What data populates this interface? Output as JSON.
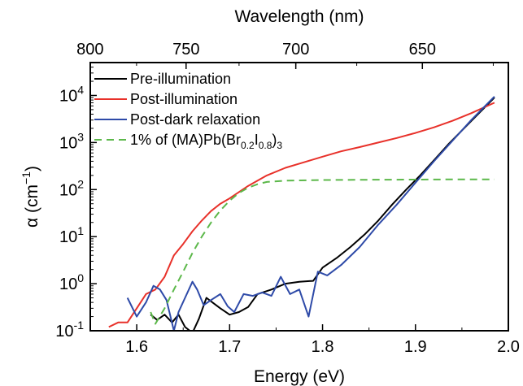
{
  "chart_data": {
    "type": "line",
    "xlabel": "Energy (eV)",
    "ylabel": "α (cm⁻¹)",
    "ylabel_parts": {
      "symbol": "α",
      "open": " (cm",
      "exp": "−1",
      "close": ")"
    },
    "top_xlabel": "Wavelength (nm)",
    "xlim": [
      1.55,
      2.0
    ],
    "ylim": [
      0.1,
      50000
    ],
    "y_scale": "log",
    "x_ticks": [
      "1.6",
      "1.7",
      "1.8",
      "1.9",
      "2.0"
    ],
    "x_tick_values": [
      1.6,
      1.7,
      1.8,
      1.9,
      2.0
    ],
    "y_ticks": [
      {
        "value": 0.1,
        "base": "10",
        "exp": "-1"
      },
      {
        "value": 1,
        "base": "10",
        "exp": "0"
      },
      {
        "value": 10,
        "base": "10",
        "exp": "1"
      },
      {
        "value": 100,
        "base": "10",
        "exp": "2"
      },
      {
        "value": 1000,
        "base": "10",
        "exp": "3"
      },
      {
        "value": 10000,
        "base": "10",
        "exp": "4"
      }
    ],
    "top_ticks": [
      {
        "label": "800",
        "nm": 800
      },
      {
        "label": "750",
        "nm": 750
      },
      {
        "label": "700",
        "nm": 700
      },
      {
        "label": "650",
        "nm": 650
      }
    ],
    "legend_position": "top-left",
    "series": [
      {
        "name": "Pre-illumination",
        "color": "#000000",
        "dash": "solid",
        "x": [
          1.615,
          1.622,
          1.63,
          1.638,
          1.645,
          1.652,
          1.66,
          1.667,
          1.675,
          1.683,
          1.69,
          1.7,
          1.71,
          1.72,
          1.73,
          1.745,
          1.76,
          1.775,
          1.79,
          1.8,
          1.815,
          1.83,
          1.845,
          1.86,
          1.875,
          1.89,
          1.905,
          1.92,
          1.935,
          1.95,
          1.965,
          1.985
        ],
        "y": [
          0.22,
          0.17,
          0.22,
          0.15,
          0.22,
          0.12,
          0.09,
          0.18,
          0.5,
          0.38,
          0.3,
          0.22,
          0.25,
          0.32,
          0.6,
          0.75,
          1.0,
          1.1,
          1.15,
          2.2,
          3.5,
          6,
          11,
          22,
          48,
          100,
          200,
          420,
          900,
          1800,
          3600,
          9000
        ]
      },
      {
        "name": "Post-illumination",
        "color": "#e8312a",
        "dash": "solid",
        "x": [
          1.57,
          1.58,
          1.59,
          1.6,
          1.61,
          1.62,
          1.63,
          1.64,
          1.65,
          1.66,
          1.67,
          1.68,
          1.69,
          1.7,
          1.72,
          1.74,
          1.76,
          1.78,
          1.8,
          1.82,
          1.84,
          1.86,
          1.88,
          1.9,
          1.92,
          1.94,
          1.96,
          1.985
        ],
        "y": [
          0.12,
          0.15,
          0.15,
          0.3,
          0.6,
          0.75,
          1.4,
          4,
          7,
          13,
          22,
          35,
          50,
          65,
          120,
          200,
          290,
          380,
          500,
          650,
          800,
          1000,
          1250,
          1600,
          2100,
          2900,
          4200,
          7000
        ]
      },
      {
        "name": "Post-dark relaxation",
        "color": "#2e4aa8",
        "dash": "solid",
        "x": [
          1.59,
          1.6,
          1.61,
          1.618,
          1.625,
          1.632,
          1.64,
          1.645,
          1.652,
          1.66,
          1.665,
          1.672,
          1.68,
          1.69,
          1.698,
          1.705,
          1.715,
          1.725,
          1.735,
          1.745,
          1.755,
          1.765,
          1.775,
          1.785,
          1.795,
          1.805,
          1.82,
          1.84,
          1.86,
          1.88,
          1.9,
          1.92,
          1.94,
          1.96,
          1.985
        ],
        "y": [
          0.5,
          0.2,
          0.4,
          0.9,
          0.75,
          0.45,
          0.1,
          0.25,
          0.5,
          1.1,
          0.75,
          0.35,
          0.45,
          0.6,
          0.33,
          0.25,
          0.6,
          0.55,
          0.65,
          0.55,
          1.4,
          0.6,
          0.75,
          0.2,
          1.8,
          1.5,
          2.5,
          6,
          18,
          48,
          140,
          400,
          1100,
          3000,
          9500
        ]
      },
      {
        "name": "1% of (MA)Pb(Br0.2I0.8)3",
        "name_parts": {
          "pre": "1% of (MA)Pb(Br",
          "sub1": "0.2",
          "mid": "I",
          "sub2": "0.8",
          "post": ")",
          "sub3": "3"
        },
        "color": "#5cb84a",
        "dash": "dashed",
        "x": [
          1.615,
          1.62,
          1.63,
          1.64,
          1.65,
          1.66,
          1.67,
          1.68,
          1.69,
          1.7,
          1.71,
          1.72,
          1.73,
          1.74,
          1.76,
          1.8,
          1.85,
          1.9,
          1.95,
          1.985
        ],
        "y": [
          0.25,
          0.14,
          0.3,
          0.75,
          1.8,
          4.5,
          10,
          20,
          36,
          58,
          85,
          110,
          130,
          145,
          155,
          160,
          162,
          163,
          165,
          165
        ]
      }
    ]
  }
}
